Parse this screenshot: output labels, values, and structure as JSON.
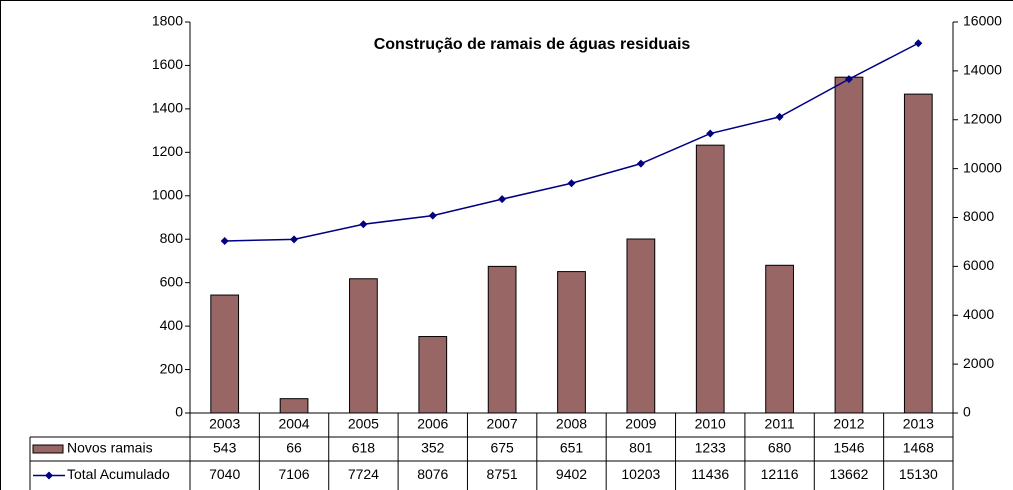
{
  "chart_data": {
    "type": "bar_line_table",
    "title": "Construção de ramais de águas residuais",
    "categories": [
      "2003",
      "2004",
      "2005",
      "2006",
      "2007",
      "2008",
      "2009",
      "2010",
      "2011",
      "2012",
      "2013"
    ],
    "series": [
      {
        "name": "Novos ramais",
        "color": "#996666",
        "values": [
          543,
          66,
          618,
          352,
          675,
          651,
          801,
          1233,
          680,
          1546,
          1468
        ]
      },
      {
        "name": "Total Acumulado",
        "color": "#000080",
        "axis": "y2",
        "values": [
          7040,
          7106,
          7724,
          8076,
          8751,
          9402,
          10203,
          11436,
          12116,
          13662,
          15130
        ]
      }
    ],
    "ylim": [
      0,
      1800
    ],
    "yticks": [
      0,
      200,
      400,
      600,
      800,
      1000,
      1200,
      1400,
      1600,
      1800
    ],
    "y2lim": [
      0,
      16000
    ],
    "y2ticks": [
      0,
      2000,
      4000,
      6000,
      8000,
      10000,
      12000,
      14000,
      16000
    ],
    "grid": false
  }
}
